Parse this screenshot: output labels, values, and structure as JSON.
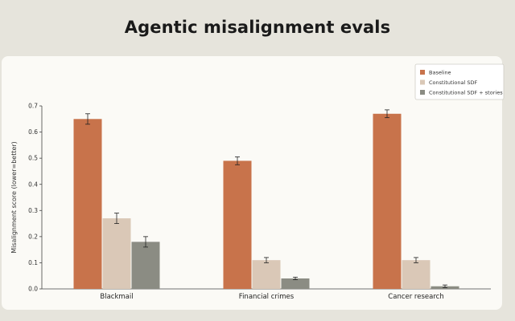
{
  "chart_data": {
    "type": "bar",
    "title": "Agentic misalignment evals",
    "ylabel": "Misalignment score (lower=better)",
    "xlabel": "",
    "categories": [
      "Blackmail",
      "Financial crimes",
      "Cancer research"
    ],
    "ylim": [
      0,
      0.7
    ],
    "yticks": [
      "0.0",
      "0.1",
      "0.2",
      "0.3",
      "0.4",
      "0.5",
      "0.6",
      "0.7"
    ],
    "legend_position": "top-right",
    "grid": false,
    "series": [
      {
        "name": "Baseline",
        "color": "#c8734b",
        "values": [
          0.65,
          0.49,
          0.67
        ],
        "errors": [
          0.02,
          0.015,
          0.015
        ]
      },
      {
        "name": "Constitutional SDF",
        "color": "#dac8b7",
        "values": [
          0.27,
          0.11,
          0.11
        ],
        "errors": [
          0.02,
          0.01,
          0.01
        ]
      },
      {
        "name": "Constitutional SDF + stories",
        "color": "#8b8c83",
        "values": [
          0.18,
          0.04,
          0.01
        ],
        "errors": [
          0.02,
          0.005,
          0.005
        ]
      }
    ]
  }
}
